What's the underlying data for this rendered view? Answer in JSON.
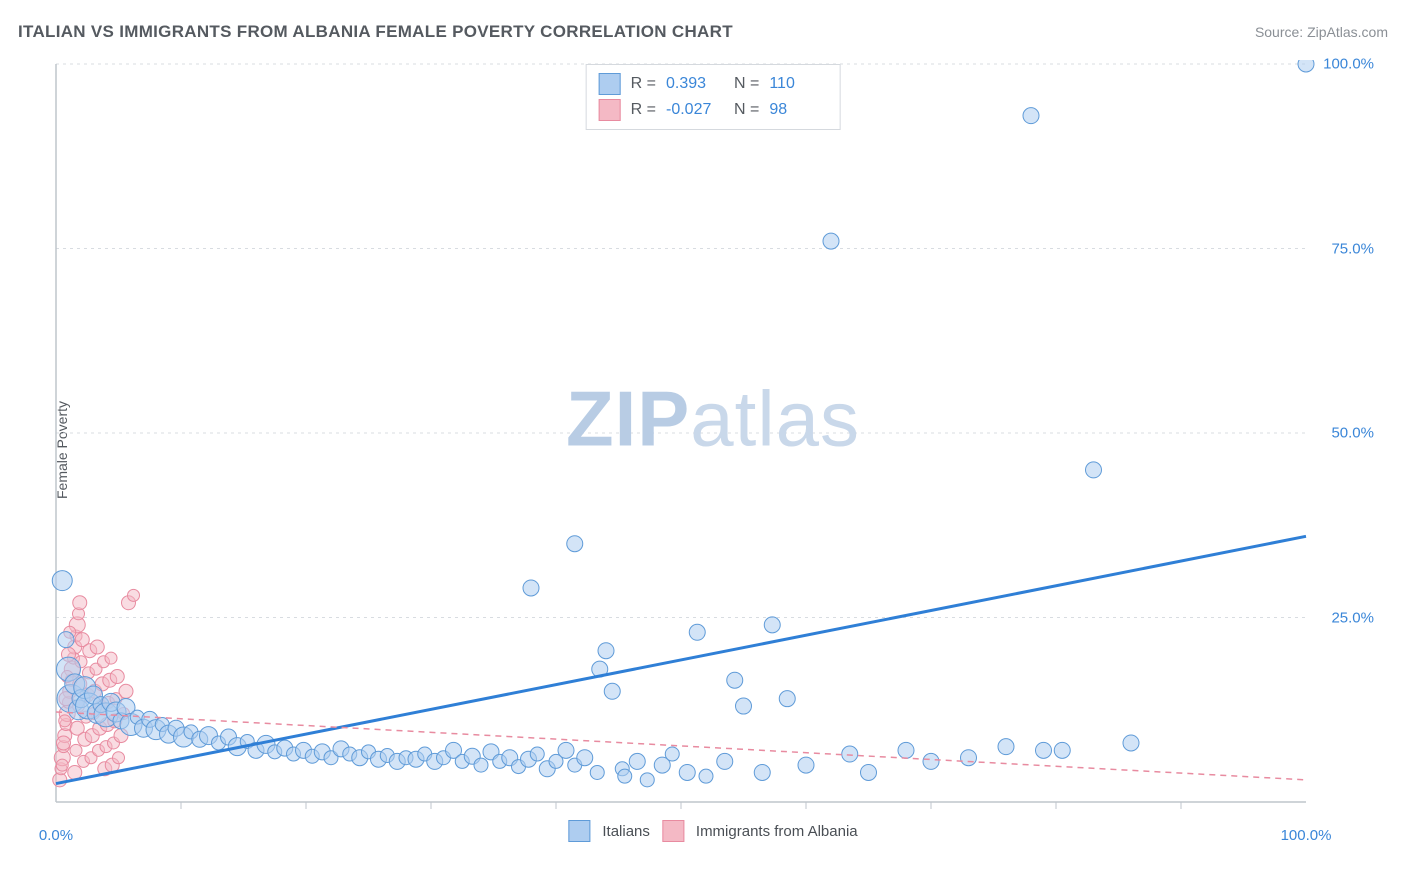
{
  "header": {
    "title": "ITALIAN VS IMMIGRANTS FROM ALBANIA FEMALE POVERTY CORRELATION CHART",
    "source": "Source: ZipAtlas.com"
  },
  "chart": {
    "type": "scatter",
    "ylabel": "Female Poverty",
    "xlim": [
      0,
      100
    ],
    "ylim": [
      0,
      100
    ],
    "yticks": [
      25,
      50,
      75,
      100
    ],
    "ytick_labels": [
      "25.0%",
      "50.0%",
      "75.0%",
      "100.0%"
    ],
    "xtick_labels": {
      "left": "0.0%",
      "right": "100.0%"
    },
    "xticks_minor": [
      10,
      20,
      30,
      40,
      50,
      60,
      70,
      80,
      90
    ],
    "background_color": "#ffffff",
    "grid_color": "#d8dce1",
    "axis_color": "#bfc5cc",
    "watermark": {
      "bold": "ZIP",
      "rest": "atlas"
    },
    "series": [
      {
        "name": "Italians",
        "fill": "#aecdf0",
        "stroke": "#5f9bd8",
        "fill_opacity": 0.55,
        "line_color": "#2f7fd6",
        "line_width": 3,
        "line_dash": "none",
        "R": "0.393",
        "N": "110",
        "trend": {
          "x1": 0,
          "y1": 2.5,
          "x2": 100,
          "y2": 36
        },
        "points": [
          {
            "x": 0.5,
            "y": 30,
            "r": 10
          },
          {
            "x": 0.8,
            "y": 22,
            "r": 8
          },
          {
            "x": 1,
            "y": 18,
            "r": 12
          },
          {
            "x": 1.2,
            "y": 14,
            "r": 14
          },
          {
            "x": 1.5,
            "y": 16,
            "r": 10
          },
          {
            "x": 1.8,
            "y": 12.5,
            "r": 10
          },
          {
            "x": 2,
            "y": 14,
            "r": 9
          },
          {
            "x": 2.3,
            "y": 15.5,
            "r": 11
          },
          {
            "x": 2.6,
            "y": 13,
            "r": 13
          },
          {
            "x": 3,
            "y": 14.5,
            "r": 9
          },
          {
            "x": 3.3,
            "y": 12,
            "r": 10
          },
          {
            "x": 3.6,
            "y": 13.2,
            "r": 8
          },
          {
            "x": 4,
            "y": 11.8,
            "r": 12
          },
          {
            "x": 4.4,
            "y": 13.5,
            "r": 9
          },
          {
            "x": 4.8,
            "y": 12.2,
            "r": 10
          },
          {
            "x": 5.2,
            "y": 11,
            "r": 8
          },
          {
            "x": 5.6,
            "y": 12.8,
            "r": 9
          },
          {
            "x": 6,
            "y": 10.5,
            "r": 11
          },
          {
            "x": 6.5,
            "y": 11.5,
            "r": 7
          },
          {
            "x": 7,
            "y": 10,
            "r": 9
          },
          {
            "x": 7.5,
            "y": 11.2,
            "r": 8
          },
          {
            "x": 8,
            "y": 9.8,
            "r": 10
          },
          {
            "x": 8.5,
            "y": 10.5,
            "r": 7
          },
          {
            "x": 9,
            "y": 9.2,
            "r": 9
          },
          {
            "x": 9.6,
            "y": 10,
            "r": 8
          },
          {
            "x": 10.2,
            "y": 8.8,
            "r": 10
          },
          {
            "x": 10.8,
            "y": 9.5,
            "r": 7
          },
          {
            "x": 11.5,
            "y": 8.5,
            "r": 8
          },
          {
            "x": 12.2,
            "y": 9,
            "r": 9
          },
          {
            "x": 13,
            "y": 8,
            "r": 7
          },
          {
            "x": 13.8,
            "y": 8.8,
            "r": 8
          },
          {
            "x": 14.5,
            "y": 7.5,
            "r": 9
          },
          {
            "x": 15.3,
            "y": 8.2,
            "r": 7
          },
          {
            "x": 16,
            "y": 7,
            "r": 8
          },
          {
            "x": 16.8,
            "y": 7.8,
            "r": 9
          },
          {
            "x": 17.5,
            "y": 6.8,
            "r": 7
          },
          {
            "x": 18.3,
            "y": 7.3,
            "r": 8
          },
          {
            "x": 19,
            "y": 6.5,
            "r": 7
          },
          {
            "x": 19.8,
            "y": 7,
            "r": 8
          },
          {
            "x": 20.5,
            "y": 6.2,
            "r": 7
          },
          {
            "x": 21.3,
            "y": 6.8,
            "r": 8
          },
          {
            "x": 22,
            "y": 6,
            "r": 7
          },
          {
            "x": 22.8,
            "y": 7.2,
            "r": 8
          },
          {
            "x": 23.5,
            "y": 6.5,
            "r": 7
          },
          {
            "x": 24.3,
            "y": 6,
            "r": 8
          },
          {
            "x": 25,
            "y": 6.8,
            "r": 7
          },
          {
            "x": 25.8,
            "y": 5.8,
            "r": 8
          },
          {
            "x": 26.5,
            "y": 6.3,
            "r": 7
          },
          {
            "x": 27.3,
            "y": 5.5,
            "r": 8
          },
          {
            "x": 28,
            "y": 6,
            "r": 7
          },
          {
            "x": 28.8,
            "y": 5.8,
            "r": 8
          },
          {
            "x": 29.5,
            "y": 6.5,
            "r": 7
          },
          {
            "x": 30.3,
            "y": 5.5,
            "r": 8
          },
          {
            "x": 31,
            "y": 6,
            "r": 7
          },
          {
            "x": 31.8,
            "y": 7,
            "r": 8
          },
          {
            "x": 32.5,
            "y": 5.5,
            "r": 7
          },
          {
            "x": 33.3,
            "y": 6.2,
            "r": 8
          },
          {
            "x": 34,
            "y": 5,
            "r": 7
          },
          {
            "x": 34.8,
            "y": 6.8,
            "r": 8
          },
          {
            "x": 35.5,
            "y": 5.5,
            "r": 7
          },
          {
            "x": 36.3,
            "y": 6,
            "r": 8
          },
          {
            "x": 37,
            "y": 4.8,
            "r": 7
          },
          {
            "x": 37.8,
            "y": 5.8,
            "r": 8
          },
          {
            "x": 38.5,
            "y": 6.5,
            "r": 7
          },
          {
            "x": 39.3,
            "y": 4.5,
            "r": 8
          },
          {
            "x": 40,
            "y": 5.5,
            "r": 7
          },
          {
            "x": 40.8,
            "y": 7,
            "r": 8
          },
          {
            "x": 41.5,
            "y": 5,
            "r": 7
          },
          {
            "x": 42.3,
            "y": 6,
            "r": 8
          },
          {
            "x": 38,
            "y": 29,
            "r": 8
          },
          {
            "x": 41.5,
            "y": 35,
            "r": 8
          },
          {
            "x": 43.5,
            "y": 18,
            "r": 8
          },
          {
            "x": 44,
            "y": 20.5,
            "r": 8
          },
          {
            "x": 43.3,
            "y": 4,
            "r": 7
          },
          {
            "x": 44.5,
            "y": 15,
            "r": 8
          },
          {
            "x": 45.3,
            "y": 4.5,
            "r": 7
          },
          {
            "x": 45.5,
            "y": 3.5,
            "r": 7
          },
          {
            "x": 46.5,
            "y": 5.5,
            "r": 8
          },
          {
            "x": 47.3,
            "y": 3,
            "r": 7
          },
          {
            "x": 48.5,
            "y": 5,
            "r": 8
          },
          {
            "x": 49.3,
            "y": 6.5,
            "r": 7
          },
          {
            "x": 50.5,
            "y": 4,
            "r": 8
          },
          {
            "x": 51.3,
            "y": 23,
            "r": 8
          },
          {
            "x": 52,
            "y": 3.5,
            "r": 7
          },
          {
            "x": 53.5,
            "y": 5.5,
            "r": 8
          },
          {
            "x": 54.3,
            "y": 16.5,
            "r": 8
          },
          {
            "x": 55,
            "y": 13,
            "r": 8
          },
          {
            "x": 56.5,
            "y": 4,
            "r": 8
          },
          {
            "x": 57.3,
            "y": 24,
            "r": 8
          },
          {
            "x": 58.5,
            "y": 14,
            "r": 8
          },
          {
            "x": 60,
            "y": 5,
            "r": 8
          },
          {
            "x": 62,
            "y": 76,
            "r": 8
          },
          {
            "x": 63.5,
            "y": 6.5,
            "r": 8
          },
          {
            "x": 65,
            "y": 4,
            "r": 8
          },
          {
            "x": 68,
            "y": 7,
            "r": 8
          },
          {
            "x": 70,
            "y": 5.5,
            "r": 8
          },
          {
            "x": 73,
            "y": 6,
            "r": 8
          },
          {
            "x": 76,
            "y": 7.5,
            "r": 8
          },
          {
            "x": 78,
            "y": 93,
            "r": 8
          },
          {
            "x": 79,
            "y": 7,
            "r": 8
          },
          {
            "x": 80.5,
            "y": 7,
            "r": 8
          },
          {
            "x": 83,
            "y": 45,
            "r": 8
          },
          {
            "x": 86,
            "y": 8,
            "r": 8
          },
          {
            "x": 100,
            "y": 100,
            "r": 8
          }
        ]
      },
      {
        "name": "Immigrants from Albania",
        "fill": "#f4b9c5",
        "stroke": "#e88ba0",
        "fill_opacity": 0.5,
        "line_color": "#e88ba0",
        "line_width": 1.5,
        "line_dash": "6 5",
        "R": "-0.027",
        "N": "98",
        "trend": {
          "x1": 0,
          "y1": 12.2,
          "x2": 100,
          "y2": 3
        },
        "points": [
          {
            "x": 0.3,
            "y": 3,
            "r": 7
          },
          {
            "x": 0.4,
            "y": 4.5,
            "r": 6
          },
          {
            "x": 0.5,
            "y": 6,
            "r": 8
          },
          {
            "x": 0.6,
            "y": 7.5,
            "r": 6
          },
          {
            "x": 0.7,
            "y": 9,
            "r": 7
          },
          {
            "x": 0.8,
            "y": 10.5,
            "r": 6
          },
          {
            "x": 0.9,
            "y": 12,
            "r": 8
          },
          {
            "x": 1,
            "y": 13.5,
            "r": 6
          },
          {
            "x": 1.1,
            "y": 15,
            "r": 7
          },
          {
            "x": 1.2,
            "y": 16.5,
            "r": 6
          },
          {
            "x": 1.3,
            "y": 18,
            "r": 8
          },
          {
            "x": 1.4,
            "y": 19.5,
            "r": 6
          },
          {
            "x": 1.5,
            "y": 21,
            "r": 7
          },
          {
            "x": 1.6,
            "y": 22.5,
            "r": 6
          },
          {
            "x": 1.7,
            "y": 24,
            "r": 8
          },
          {
            "x": 1.8,
            "y": 25.5,
            "r": 6
          },
          {
            "x": 1.9,
            "y": 27,
            "r": 7
          },
          {
            "x": 0.5,
            "y": 5,
            "r": 6
          },
          {
            "x": 0.6,
            "y": 8,
            "r": 7
          },
          {
            "x": 0.7,
            "y": 11,
            "r": 6
          },
          {
            "x": 0.8,
            "y": 14,
            "r": 7
          },
          {
            "x": 0.9,
            "y": 17,
            "r": 6
          },
          {
            "x": 1,
            "y": 20,
            "r": 7
          },
          {
            "x": 1.1,
            "y": 23,
            "r": 6
          },
          {
            "x": 1.5,
            "y": 4,
            "r": 7
          },
          {
            "x": 1.6,
            "y": 7,
            "r": 6
          },
          {
            "x": 1.7,
            "y": 10,
            "r": 7
          },
          {
            "x": 1.8,
            "y": 13,
            "r": 6
          },
          {
            "x": 1.9,
            "y": 16,
            "r": 7
          },
          {
            "x": 2,
            "y": 19,
            "r": 6
          },
          {
            "x": 2.1,
            "y": 22,
            "r": 7
          },
          {
            "x": 2.2,
            "y": 5.5,
            "r": 6
          },
          {
            "x": 2.3,
            "y": 8.5,
            "r": 7
          },
          {
            "x": 2.4,
            "y": 11.5,
            "r": 6
          },
          {
            "x": 2.5,
            "y": 14.5,
            "r": 7
          },
          {
            "x": 2.6,
            "y": 17.5,
            "r": 6
          },
          {
            "x": 2.7,
            "y": 20.5,
            "r": 7
          },
          {
            "x": 2.8,
            "y": 6,
            "r": 6
          },
          {
            "x": 2.9,
            "y": 9,
            "r": 7
          },
          {
            "x": 3,
            "y": 12,
            "r": 6
          },
          {
            "x": 3.1,
            "y": 15,
            "r": 7
          },
          {
            "x": 3.2,
            "y": 18,
            "r": 6
          },
          {
            "x": 3.3,
            "y": 21,
            "r": 7
          },
          {
            "x": 3.4,
            "y": 7,
            "r": 6
          },
          {
            "x": 3.5,
            "y": 10,
            "r": 7
          },
          {
            "x": 3.6,
            "y": 13,
            "r": 6
          },
          {
            "x": 3.7,
            "y": 16,
            "r": 7
          },
          {
            "x": 3.8,
            "y": 19,
            "r": 6
          },
          {
            "x": 3.9,
            "y": 4.5,
            "r": 7
          },
          {
            "x": 4,
            "y": 7.5,
            "r": 6
          },
          {
            "x": 4.1,
            "y": 10.5,
            "r": 7
          },
          {
            "x": 4.2,
            "y": 13.5,
            "r": 6
          },
          {
            "x": 4.3,
            "y": 16.5,
            "r": 7
          },
          {
            "x": 4.4,
            "y": 19.5,
            "r": 6
          },
          {
            "x": 4.5,
            "y": 5,
            "r": 7
          },
          {
            "x": 4.6,
            "y": 8,
            "r": 6
          },
          {
            "x": 4.7,
            "y": 11,
            "r": 7
          },
          {
            "x": 4.8,
            "y": 14,
            "r": 6
          },
          {
            "x": 4.9,
            "y": 17,
            "r": 7
          },
          {
            "x": 5,
            "y": 6,
            "r": 6
          },
          {
            "x": 5.2,
            "y": 9,
            "r": 7
          },
          {
            "x": 5.4,
            "y": 12,
            "r": 6
          },
          {
            "x": 5.6,
            "y": 15,
            "r": 7
          },
          {
            "x": 5.8,
            "y": 27,
            "r": 7
          },
          {
            "x": 6.2,
            "y": 28,
            "r": 6
          }
        ]
      }
    ]
  }
}
